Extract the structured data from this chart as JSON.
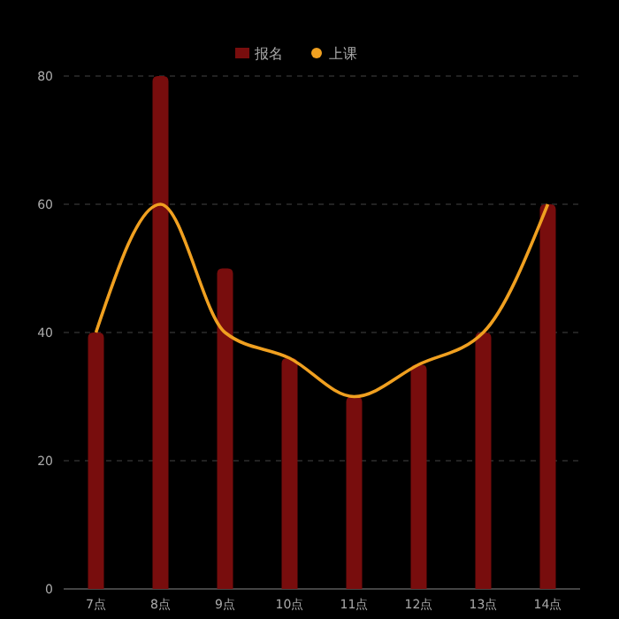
{
  "chart_data": {
    "type": "bar",
    "categories": [
      "7点",
      "8点",
      "9点",
      "10点",
      "11点",
      "12点",
      "13点",
      "14点"
    ],
    "series": [
      {
        "name": "报名",
        "color": "#780d0d",
        "values": [
          40,
          80,
          50,
          36,
          30,
          35,
          40,
          60
        ]
      },
      {
        "name": "上课",
        "type": "line",
        "color": "#f0a020",
        "values": [
          40,
          60,
          40,
          36,
          30,
          35,
          40,
          60
        ]
      }
    ],
    "ylim": [
      0,
      80
    ],
    "yticks": [
      0,
      20,
      40,
      60,
      80
    ],
    "grid": "y",
    "legend": "top",
    "marker": "none"
  }
}
